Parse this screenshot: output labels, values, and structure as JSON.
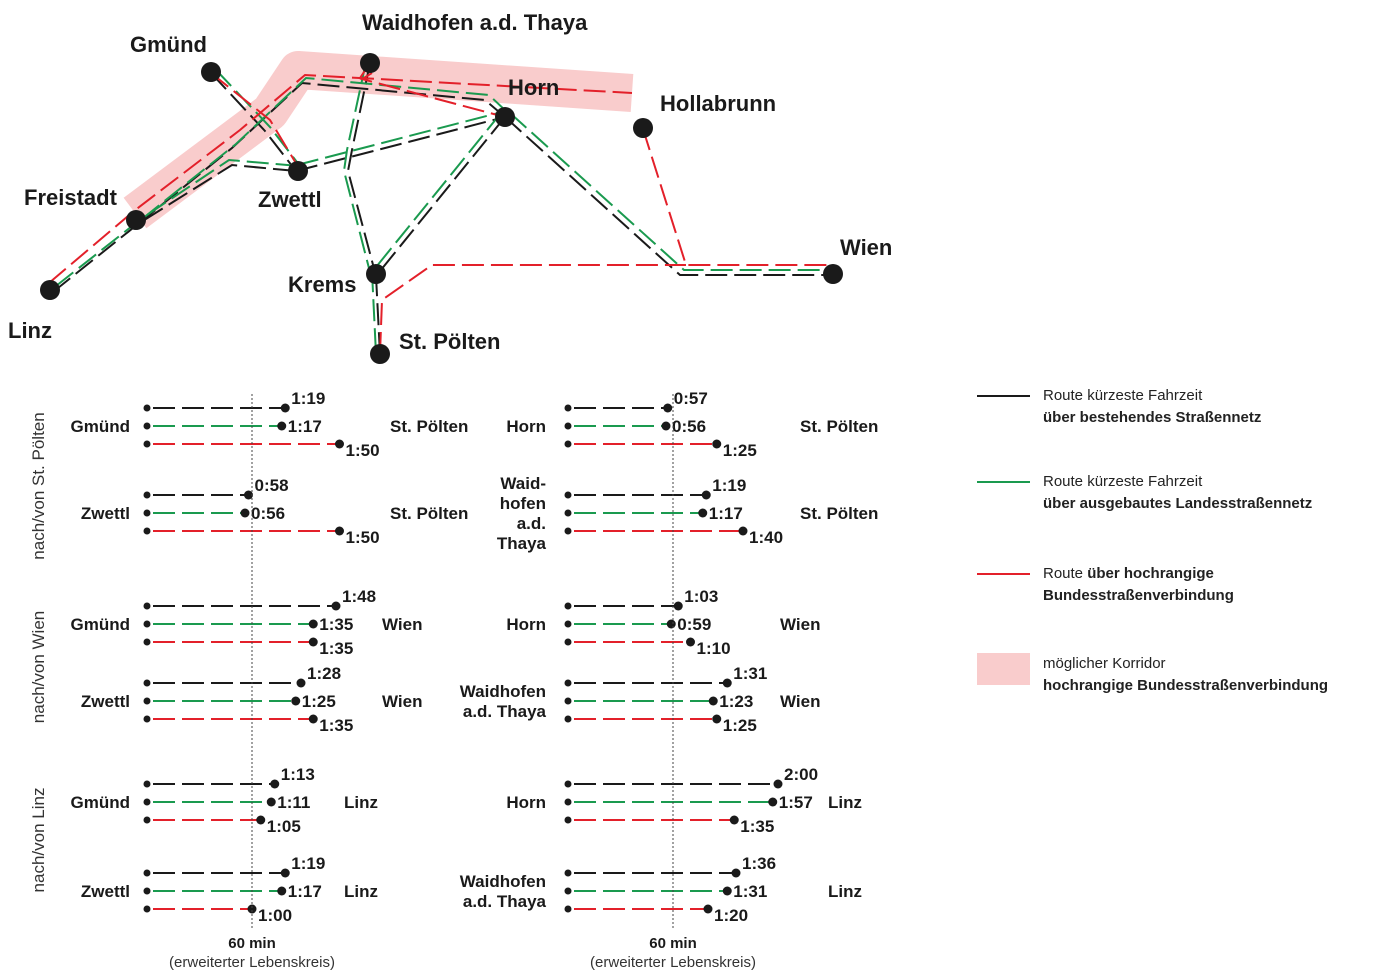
{
  "colors": {
    "black": "#1a1a1a",
    "green": "#1a9a4f",
    "red": "#e3202a",
    "corridor": "#f9cccc"
  },
  "map": {
    "cities": [
      {
        "id": "gmuend",
        "name": "Gmünd"
      },
      {
        "id": "waidhofen",
        "name": "Waidhofen a.d. Thaya"
      },
      {
        "id": "horn",
        "name": "Horn"
      },
      {
        "id": "hollabrunn",
        "name": "Hollabrunn"
      },
      {
        "id": "freistadt",
        "name": "Freistadt"
      },
      {
        "id": "zwettl",
        "name": "Zwettl"
      },
      {
        "id": "wien",
        "name": "Wien"
      },
      {
        "id": "krems",
        "name": "Krems"
      },
      {
        "id": "stpoelten",
        "name": "St. Pölten"
      },
      {
        "id": "linz",
        "name": "Linz"
      }
    ]
  },
  "groups": [
    {
      "label": "nach/von St. Pölten"
    },
    {
      "label": "nach/von Wien"
    },
    {
      "label": "nach/von Linz"
    }
  ],
  "rows": [
    {
      "origin": "Gmünd",
      "dest": "St. Pölten",
      "group": 0,
      "col": 0,
      "values": [
        {
          "route": "black",
          "time": "1:19"
        },
        {
          "route": "green",
          "time": "1:17"
        },
        {
          "route": "red",
          "time": "1:50"
        }
      ]
    },
    {
      "origin": "Zwettl",
      "dest": "St. Pölten",
      "group": 0,
      "col": 0,
      "values": [
        {
          "route": "black",
          "time": "0:58"
        },
        {
          "route": "green",
          "time": "0:56"
        },
        {
          "route": "red",
          "time": "1:50"
        }
      ]
    },
    {
      "origin": "Horn",
      "dest": "St. Pölten",
      "group": 0,
      "col": 1,
      "values": [
        {
          "route": "black",
          "time": "0:57"
        },
        {
          "route": "green",
          "time": "0:56"
        },
        {
          "route": "red",
          "time": "1:25"
        }
      ]
    },
    {
      "origin": "Waid-\nhofen\na.d.\nThaya",
      "dest": "St. Pölten",
      "group": 0,
      "col": 1,
      "values": [
        {
          "route": "black",
          "time": "1:19"
        },
        {
          "route": "green",
          "time": "1:17"
        },
        {
          "route": "red",
          "time": "1:40"
        }
      ]
    },
    {
      "origin": "Gmünd",
      "dest": "Wien",
      "group": 1,
      "col": 0,
      "values": [
        {
          "route": "black",
          "time": "1:48"
        },
        {
          "route": "green",
          "time": "1:35"
        },
        {
          "route": "red",
          "time": "1:35"
        }
      ]
    },
    {
      "origin": "Zwettl",
      "dest": "Wien",
      "group": 1,
      "col": 0,
      "values": [
        {
          "route": "black",
          "time": "1:28"
        },
        {
          "route": "green",
          "time": "1:25"
        },
        {
          "route": "red",
          "time": "1:35"
        }
      ]
    },
    {
      "origin": "Horn",
      "dest": "Wien",
      "group": 1,
      "col": 1,
      "values": [
        {
          "route": "black",
          "time": "1:03"
        },
        {
          "route": "green",
          "time": "0:59"
        },
        {
          "route": "red",
          "time": "1:10"
        }
      ]
    },
    {
      "origin": "Waidhofen\na.d. Thaya",
      "dest": "Wien",
      "group": 1,
      "col": 1,
      "values": [
        {
          "route": "black",
          "time": "1:31"
        },
        {
          "route": "green",
          "time": "1:23"
        },
        {
          "route": "red",
          "time": "1:25"
        }
      ]
    },
    {
      "origin": "Gmünd",
      "dest": "Linz",
      "group": 2,
      "col": 0,
      "values": [
        {
          "route": "black",
          "time": "1:13"
        },
        {
          "route": "green",
          "time": "1:11"
        },
        {
          "route": "red",
          "time": "1:05"
        }
      ]
    },
    {
      "origin": "Zwettl",
      "dest": "Linz",
      "group": 2,
      "col": 0,
      "values": [
        {
          "route": "black",
          "time": "1:19"
        },
        {
          "route": "green",
          "time": "1:17"
        },
        {
          "route": "red",
          "time": "1:00"
        }
      ]
    },
    {
      "origin": "Horn",
      "dest": "Linz",
      "group": 2,
      "col": 1,
      "values": [
        {
          "route": "black",
          "time": "2:00"
        },
        {
          "route": "green",
          "time": "1:57"
        },
        {
          "route": "red",
          "time": "1:35"
        }
      ]
    },
    {
      "origin": "Waidhofen\na.d. Thaya",
      "dest": "Linz",
      "group": 2,
      "col": 1,
      "values": [
        {
          "route": "black",
          "time": "1:36"
        },
        {
          "route": "green",
          "time": "1:31"
        },
        {
          "route": "red",
          "time": "1:20"
        }
      ]
    }
  ],
  "reference": {
    "minutes": 60,
    "label": "60 min",
    "sublabel": "(erweiterter Lebenskreis)"
  },
  "legend": [
    {
      "kind": "black",
      "line1": "Route kürzeste Fahrzeit",
      "line2": "über bestehendes Straßennetz"
    },
    {
      "kind": "green",
      "line1": "Route kürzeste Fahrzeit",
      "line2": "über ausgebautes Landesstraßennetz"
    },
    {
      "kind": "red",
      "line1_plain": "Route ",
      "line1_bold": "über hochrangige",
      "line2": "Bundesstraßenverbindung"
    },
    {
      "kind": "corridor",
      "line1": "möglicher Korridor",
      "line2": "hochrangige Bundesstraßenverbindung"
    }
  ]
}
